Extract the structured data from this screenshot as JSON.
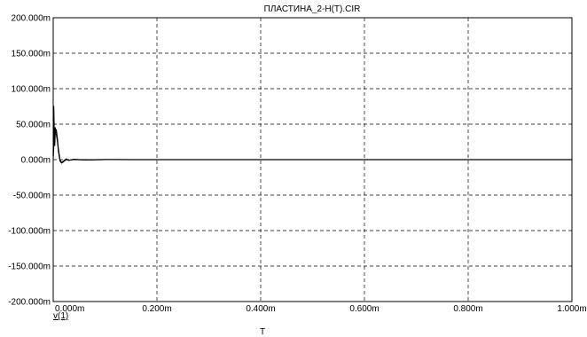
{
  "chart_data": {
    "type": "line",
    "title": "ПЛАСТИНА_2-H(T).CIR",
    "xlabel": "T",
    "ylabel": "",
    "xlim": [
      0.0,
      1.0
    ],
    "ylim": [
      -200,
      200
    ],
    "x_ticks": [
      0.0,
      0.2,
      0.4,
      0.6,
      0.8,
      1.0
    ],
    "x_tick_labels": [
      "0.000m",
      "0.200m",
      "0.400m",
      "0.600m",
      "0.800m",
      "1.000m"
    ],
    "y_ticks": [
      200,
      150,
      100,
      50,
      0,
      -50,
      -100,
      -150,
      -200
    ],
    "y_tick_labels": [
      "200.000m",
      "150.000m",
      "100.000m",
      "50.000m",
      "0.000m",
      "-50.000m",
      "-100.000m",
      "-150.000m",
      "-200.000m"
    ],
    "grid": true,
    "legend_placement": "bottom-left",
    "series": [
      {
        "name": "v(1)",
        "color": "#000000",
        "x": [
          0.0,
          0.001,
          0.002,
          0.003,
          0.004,
          0.005,
          0.006,
          0.008,
          0.01,
          0.013,
          0.016,
          0.02,
          0.025,
          0.03,
          0.04,
          0.05,
          0.07,
          0.1,
          0.15,
          0.2,
          0.3,
          0.4,
          0.5,
          0.6,
          0.7,
          0.8,
          0.9,
          1.0
        ],
        "y": [
          5,
          75,
          40,
          20,
          45,
          38,
          42,
          30,
          15,
          0,
          -4,
          -2,
          1,
          -1,
          0.5,
          0,
          -0.3,
          0.2,
          0,
          0,
          0,
          0,
          0,
          0,
          0,
          0,
          0,
          0
        ]
      },
      {
        "name": "",
        "color": "#000000",
        "x": [
          0.0,
          0.002,
          0.004,
          0.006,
          0.008,
          0.01,
          0.013,
          0.016,
          0.02,
          0.025,
          0.03,
          0.04,
          0.06,
          0.1,
          0.2,
          0.4,
          0.6,
          0.8,
          1.0
        ],
        "y": [
          0,
          30,
          38,
          35,
          26,
          12,
          -2,
          -5,
          -3,
          0,
          -1,
          0,
          -0.5,
          0,
          0,
          0,
          0,
          0,
          0
        ]
      }
    ]
  }
}
